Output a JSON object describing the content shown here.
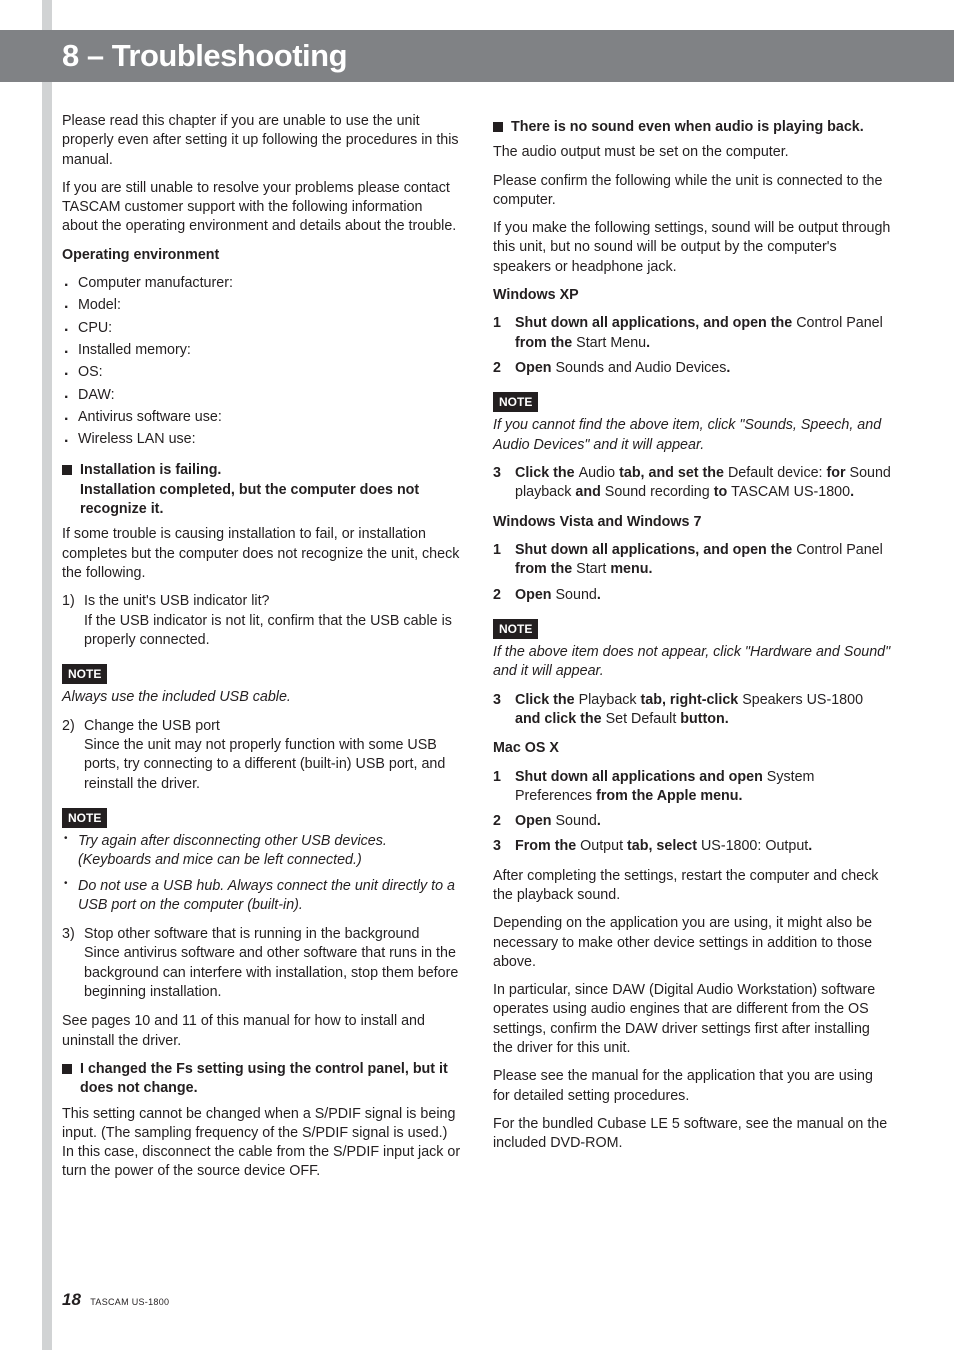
{
  "header": {
    "title": "8 – Troubleshooting"
  },
  "left": {
    "intro1": "Please read this chapter if you are unable to use the unit properly even after setting it up following the procedures in this manual.",
    "intro2": "If you are still unable to resolve your problems please contact TASCAM customer support with the following information about the operating environment and details about the trouble.",
    "env_heading": "Operating environment",
    "env_items": [
      "Computer manufacturer:",
      "Model:",
      "CPU:",
      "Installed memory:",
      "OS:",
      "DAW:",
      "Antivirus software use:",
      "Wireless LAN use:"
    ],
    "blk_install_line1": "Installation is failing.",
    "blk_install_line2": "Installation completed, but the computer does not recognize it.",
    "install_p": "If some trouble is causing installation to fail, or installation completes but the computer does not recognize the unit, check the following.",
    "step1_n": "1)",
    "step1_l1": "Is the unit's USB indicator lit?",
    "step1_l2": "If the USB indicator is not lit, confirm that the USB cable is properly connected.",
    "note_label": "NOTE",
    "note1_body": "Always use the included USB cable.",
    "step2_n": "2)",
    "step2_l1": "Change the USB port",
    "step2_l2": "Since the unit may not properly function with some USB ports, try connecting to a different (built-in) USB port, and reinstall the driver.",
    "note2_b1": "Try again after disconnecting other USB devices. (Keyboards and mice can be left connected.)",
    "note2_b2": "Do not use a USB hub. Always connect the unit directly to a USB port on the computer (built-in).",
    "step3_n": "3)",
    "step3_l1": "Stop other software that is running in the background",
    "step3_l2": "Since antivirus software and other software that runs in the background can interfere with installation, stop them before beginning installation.",
    "see_pages": "See pages 10 and 11 of this manual for how to install and uninstall the driver.",
    "blk_fs": "I changed the Fs setting using the control panel, but it does not change.",
    "fs_p": "This setting cannot be changed when a S/PDIF signal is being input. (The sampling frequency of the S/PDIF signal is used.) In this case, disconnect the cable from the S/PDIF input jack or turn the power of the source device OFF."
  },
  "right": {
    "blk_nosound": "There is no sound even when audio is playing back.",
    "ns_p1": "The audio output must be set on the computer.",
    "ns_p2": "Please confirm the following while the unit is connected to the computer.",
    "ns_p3": "If you make the following settings, sound will be output through this unit, but no sound will be output by the computer's speakers or headphone jack.",
    "xp_heading": "Windows XP",
    "xp1_pieces": {
      "a": "Shut down all applications, and open the ",
      "b": "Control Panel ",
      "c": "from the ",
      "d": "Start Menu",
      "e": "."
    },
    "xp2_pieces": {
      "a": "Open ",
      "b": "Sounds and Audio Devices",
      "c": "."
    },
    "note_xp": "If you cannot find the above item, click \"Sounds, Speech, and Audio Devices\" and it will appear.",
    "xp3_pieces": {
      "a": "Click the ",
      "b": "Audio ",
      "c": "tab, and set the ",
      "d": "Default device: ",
      "e": "for ",
      "f": "Sound playback ",
      "g": "and ",
      "h": "Sound recording ",
      "i": "to ",
      "j": "TASCAM US-1800",
      "k": "."
    },
    "vista_heading": "Windows Vista and Windows 7",
    "v1_pieces": {
      "a": "Shut down all applications, and open the ",
      "b": "Control Panel ",
      "c": "from the ",
      "d": "Start ",
      "e": "menu."
    },
    "v2_pieces": {
      "a": "Open ",
      "b": "Sound",
      "c": "."
    },
    "note_v": "If the above item does not appear, click \"Hardware and Sound\" and it will appear.",
    "v3_pieces": {
      "a": "Click the ",
      "b": "Playback ",
      "c": "tab, right-click ",
      "d": "Speakers US-1800 ",
      "e": "and click the ",
      "f": "Set Default ",
      "g": "button."
    },
    "mac_heading": "Mac OS X",
    "m1_pieces": {
      "a": "Shut down all applications and open ",
      "b": "System Preferences ",
      "c": "from the Apple menu."
    },
    "m2_pieces": {
      "a": "Open ",
      "b": "Sound",
      "c": "."
    },
    "m3_pieces": {
      "a": "From the ",
      "b": "Output ",
      "c": "tab, select ",
      "d": "US-1800: Output",
      "e": "."
    },
    "after_p1": "After completing the settings, restart the computer and check the playback sound.",
    "after_p2": "Depending on the application you are using, it might also be necessary to make other device settings in addition to those above.",
    "after_p3": "In particular, since DAW (Digital Audio Workstation) software operates using audio engines that are different from the OS settings, confirm the DAW driver settings first after installing the driver for this unit.",
    "after_p4": "Please see the manual for the application that you are using for detailed setting procedures.",
    "after_p5": "For the bundled Cubase LE 5 software, see the manual on the included DVD-ROM."
  },
  "footer": {
    "page": "18",
    "product": "TASCAM US-1800"
  },
  "nums": {
    "n1": "1",
    "n2": "2",
    "n3": "3"
  }
}
